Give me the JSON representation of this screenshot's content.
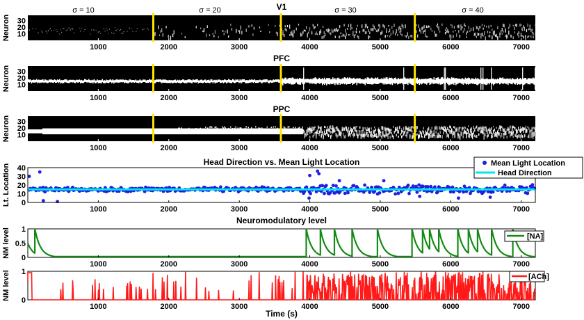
{
  "colors": {
    "raster_bg": "#000000",
    "raster_fg": "#ffffff",
    "boundary": "#ffe600",
    "light_points": "#1f1fe0",
    "head_direction": "#00e5ee",
    "na": "#138a13",
    "ach": "#ff1a1a"
  },
  "sigma_labels": [
    "σ = 10",
    "σ = 20",
    "σ = 30",
    "σ = 40"
  ],
  "boundaries": [
    1780,
    3590,
    5490
  ],
  "x_range": [
    0,
    7200
  ],
  "x_ticks": [
    1000,
    2000,
    3000,
    4000,
    5000,
    6000,
    7000
  ],
  "x_label": "Time (s)",
  "chart_data": [
    {
      "type": "heatmap",
      "key": "v1",
      "title": "V1",
      "ylabel": "Neuron",
      "yticks": [
        10,
        20,
        30
      ],
      "ylim": [
        0,
        38
      ],
      "activity": "sparse noisy firing for σ = 10, increasingly scattered bright activity for σ = 20, 30, 40"
    },
    {
      "type": "heatmap",
      "key": "pfc",
      "title": "PFC",
      "ylabel": "Neuron",
      "yticks": [
        10,
        20,
        30
      ],
      "ylim": [
        0,
        38
      ],
      "activity": "bright bump centred near neuron 15, widening after t≈3600 s, vertical bursts after t≈3900 s"
    },
    {
      "type": "heatmap",
      "key": "ppc",
      "title": "PPC",
      "ylabel": "Neuron",
      "yticks": [
        10,
        20,
        30
      ],
      "ylim": [
        0,
        38
      ],
      "activity": "solid bright band at neurons 10–20 until t≈3900 s, then fragmented"
    },
    {
      "type": "scatter",
      "key": "light",
      "title": "Head Direction vs. Mean Light Location",
      "ylabel": "Lt. Location",
      "yticks": [
        0,
        10,
        20,
        30,
        40
      ],
      "ylim": [
        0,
        40
      ],
      "series": [
        {
          "name": "Mean Light Location",
          "kind": "scatter",
          "center": 15,
          "spread_before_3900": 3,
          "spread_after_3900": 6,
          "outliers": [
            {
              "x": 20,
              "y": 30
            },
            {
              "x": 170,
              "y": 35
            },
            {
              "x": 220,
              "y": 2
            },
            {
              "x": 420,
              "y": 1
            },
            {
              "x": 4000,
              "y": 31
            },
            {
              "x": 4110,
              "y": 36
            },
            {
              "x": 4130,
              "y": 33
            },
            {
              "x": 3990,
              "y": 5
            },
            {
              "x": 4420,
              "y": 25
            },
            {
              "x": 5050,
              "y": 25
            },
            {
              "x": 6110,
              "y": 5
            },
            {
              "x": 6560,
              "y": 6
            },
            {
              "x": 5560,
              "y": 7
            }
          ]
        },
        {
          "name": "Head Direction",
          "kind": "line",
          "value": 15
        }
      ]
    },
    {
      "type": "line",
      "key": "na",
      "title": "Neuromodulatory level",
      "ylabel": "NM level",
      "yticks": [
        0,
        0.5,
        1
      ],
      "ylim": [
        0,
        1
      ],
      "series": [
        {
          "name": "[NA]",
          "initial": 0.5,
          "baseline": 0.03,
          "decay_tau_s": 80,
          "spike_times": [
            100,
            3950,
            4150,
            4350,
            4600,
            4960,
            5450,
            5600,
            5700,
            5830,
            6100,
            6250,
            6380,
            6580,
            6880
          ]
        }
      ]
    },
    {
      "type": "line",
      "key": "ach",
      "title": "",
      "ylabel": "NM level",
      "yticks": [
        0,
        1
      ],
      "ylim": [
        0,
        1
      ],
      "series": [
        {
          "name": "[ACh]",
          "activity": "brief spikes up to 1 from a baseline of 0, sparse before t≈3950 s and dense afterwards"
        }
      ]
    }
  ],
  "legends": {
    "light": [
      "Mean Light Location",
      "Head Direction"
    ],
    "na": [
      "[NA]"
    ],
    "ach": [
      "[ACh]"
    ]
  }
}
